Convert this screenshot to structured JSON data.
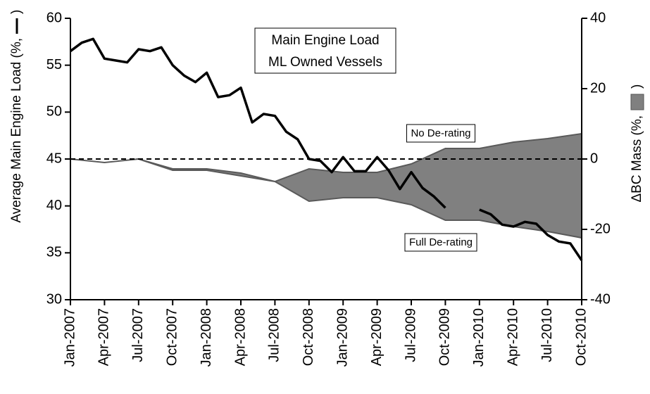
{
  "chart_data": {
    "type": "line",
    "title": [
      "Main Engine Load",
      "ML Owned Vessels"
    ],
    "ylabel": [
      "Average Main Engine Load (%,",
      ")"
    ],
    "y2label": [
      "ΔBC Mass (%,",
      ")"
    ],
    "annotations": [
      "No De-rating",
      "Full De-rating"
    ],
    "categories": [
      "Jan-2007",
      null,
      null,
      "Apr-2007",
      null,
      null,
      "Jul-2007",
      null,
      null,
      "Oct-2007",
      null,
      null,
      "Jan-2008",
      null,
      null,
      "Apr-2008",
      null,
      null,
      "Jul-2008",
      null,
      null,
      "Oct-2008",
      null,
      null,
      "Jan-2009",
      null,
      null,
      "Apr-2009",
      null,
      null,
      "Jul-2009",
      null,
      null,
      "Oct-2009",
      null,
      null,
      "Jan-2010",
      null,
      null,
      "Apr-2010",
      null,
      null,
      "Jul-2010",
      null,
      null,
      "Oct-2010"
    ],
    "series": [
      {
        "color": "#000000",
        "values": [
          56.5,
          57.4,
          57.8,
          55.7,
          55.5,
          55.3,
          56.7,
          56.5,
          56.9,
          55.0,
          53.9,
          53.2,
          54.2,
          51.6,
          51.8,
          52.6,
          48.9,
          49.8,
          49.6,
          47.9,
          47.1,
          45.0,
          44.8,
          43.6,
          45.2,
          43.7,
          43.7,
          45.2,
          43.8,
          41.8,
          43.6,
          41.9,
          41.0,
          39.8,
          null,
          null,
          39.6,
          39.1,
          38.0,
          37.8,
          38.3,
          38.1,
          36.9,
          36.2,
          36.0,
          34.2
        ]
      }
    ],
    "band": {
      "axis": "y2",
      "color": "#808080",
      "x": [
        "Jan-2007",
        "Apr-2007",
        "Jul-2007",
        "Oct-2007",
        "Jan-2008",
        "Apr-2008",
        "Jul-2008",
        "Oct-2008",
        "Jan-2009",
        "Apr-2009",
        "Jul-2009",
        "Oct-2009",
        "Jan-2010",
        "Apr-2010",
        "Jul-2010",
        "Oct-2010"
      ],
      "upper": [
        0,
        -1,
        0,
        -2.8,
        -2.8,
        -4,
        -6.4,
        -2.8,
        -3.8,
        -3.8,
        -1.4,
        3,
        3,
        4.8,
        5.8,
        7.2
      ],
      "lower": [
        0,
        -1,
        0,
        -3.2,
        -3.2,
        -4.8,
        -6.4,
        -12,
        -11,
        -11,
        -13,
        -17.4,
        -17.4,
        -19.2,
        -20.6,
        -22.4
      ]
    },
    "reference_line": {
      "value": 0,
      "axis": "y2"
    },
    "ylim": [
      30,
      60
    ],
    "yticks": [
      30,
      35,
      40,
      45,
      50,
      55,
      60
    ],
    "y2lim": [
      -40,
      40
    ],
    "y2ticks": [
      -40,
      -20,
      0,
      20,
      40
    ]
  }
}
